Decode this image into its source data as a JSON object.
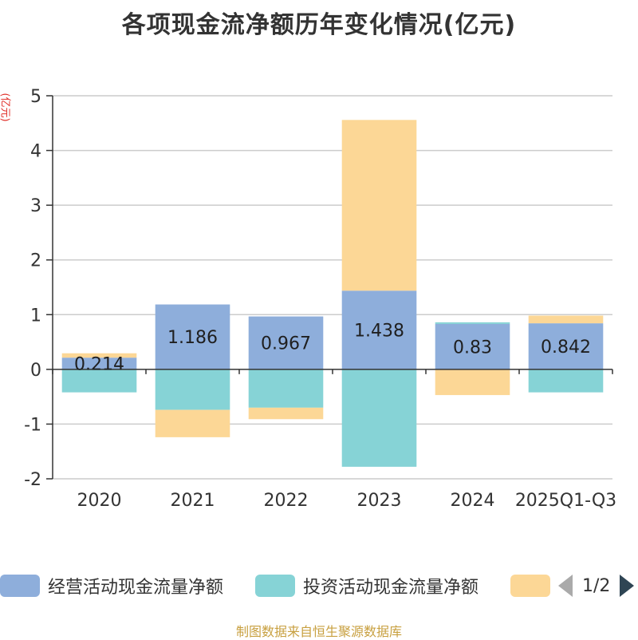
{
  "title": "各项现金流净额历年变化情况(亿元)",
  "unit_label": "(亿元)",
  "source": "制图数据来自恒生聚源数据库",
  "legend": {
    "items": [
      {
        "label": "经营活动现金流量净额",
        "color": "#8eaedb"
      },
      {
        "label": "投资活动现金流量净额",
        "color": "#86d3d6"
      },
      {
        "label": "",
        "color": "#fcd796"
      }
    ],
    "page_text": "1/2"
  },
  "chart_data": {
    "type": "bar",
    "stacked": true,
    "categories": [
      "2020",
      "2021",
      "2022",
      "2023",
      "2024",
      "2025Q1-Q3"
    ],
    "ylim": [
      -2,
      5
    ],
    "yticks": [
      -2,
      -1,
      0,
      1,
      2,
      3,
      4,
      5
    ],
    "grid": true,
    "legend_position": "bottom",
    "series": [
      {
        "name": "经营活动现金流量净额",
        "color": "#8eaedb",
        "values": [
          0.214,
          1.186,
          0.967,
          1.438,
          0.83,
          0.842
        ],
        "labels": [
          "0.214",
          "1.186",
          "0.967",
          "1.438",
          "0.83",
          "0.842"
        ]
      },
      {
        "name": "投资活动现金流量净额",
        "color": "#86d3d6",
        "values": [
          -0.42,
          -0.74,
          -0.7,
          -1.78,
          0.03,
          -0.42
        ]
      },
      {
        "color": "#fcd796",
        "values": [
          0.08,
          -0.5,
          -0.21,
          3.12,
          -0.47,
          0.14
        ]
      }
    ]
  }
}
